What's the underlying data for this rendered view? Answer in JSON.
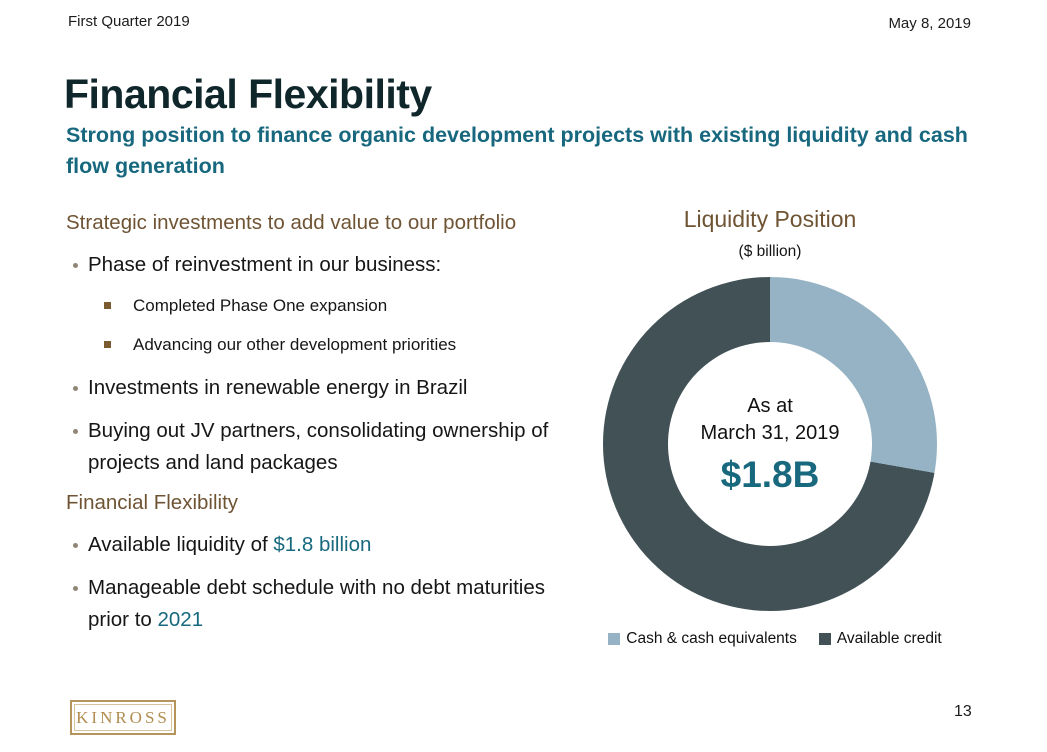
{
  "header": {
    "presentation": "First Quarter 2019",
    "date": "May 8, 2019"
  },
  "title": "Financial Flexibility",
  "subtitle": "Strong position to finance organic development projects with existing liquidity and cash flow generation",
  "content": {
    "section1_heading": "Strategic investments to add value to our portfolio",
    "bullet1": "Phase of reinvestment in our business:",
    "sub_bullets": [
      "Completed Phase One expansion",
      "Advancing our other development priorities"
    ],
    "bullet2": "Investments in renewable energy in Brazil",
    "bullet3": "Buying out JV partners, consolidating ownership of projects and land packages",
    "section2_heading": "Financial Flexibility",
    "bullet4": {
      "prefix": "Available liquidity of ",
      "highlight": "$1.8 billion"
    },
    "bullet5": {
      "prefix": "Manageable debt schedule with no debt maturities prior to ",
      "highlight": "2021"
    }
  },
  "chart_data": {
    "type": "pie",
    "donut": true,
    "title": "Liquidity Position",
    "subtitle": "($ billion)",
    "categories": [
      "Cash & cash equivalents",
      "Available credit"
    ],
    "values": [
      0.5,
      1.3
    ],
    "total": 1.8,
    "center_label": {
      "line1": "As at",
      "line2": "March 31, 2019",
      "value": "$1.8B"
    },
    "colors": [
      "#95b3c4",
      "#415155"
    ],
    "legend_position": "bottom",
    "start_angle_deg": 0
  },
  "footer": {
    "logo": "KINROSS",
    "page": "13"
  },
  "colors": {
    "accent_teal": "#18697e",
    "accent_brown": "#6f5434",
    "title_dark": "#0f262b",
    "slice_cash": "#95b3c4",
    "slice_credit": "#415155",
    "logo_gold": "#b6955c"
  }
}
